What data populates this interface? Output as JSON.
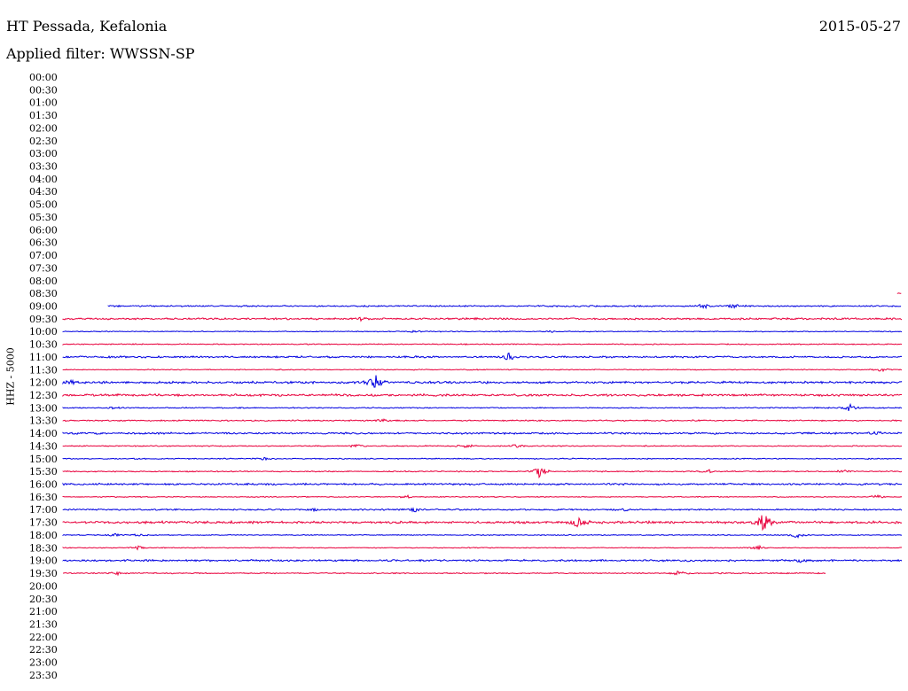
{
  "header": {
    "station": "HT Pessada, Kefalonia",
    "date": "2015-05-27",
    "filter_label": "Applied filter: WWSSN-SP"
  },
  "chart_data": {
    "type": "line",
    "ylabel": "HHZ - 5000",
    "row_labels": [
      "00:00",
      "00:30",
      "01:00",
      "01:30",
      "02:00",
      "02:30",
      "03:00",
      "03:30",
      "04:00",
      "04:30",
      "05:00",
      "05:30",
      "06:00",
      "06:30",
      "07:00",
      "07:30",
      "08:00",
      "08:30",
      "09:00",
      "09:30",
      "10:00",
      "10:30",
      "11:00",
      "11:30",
      "12:00",
      "12:30",
      "13:00",
      "13:30",
      "14:00",
      "14:30",
      "15:00",
      "15:30",
      "16:00",
      "16:30",
      "17:00",
      "17:30",
      "18:00",
      "18:30",
      "19:00",
      "19:30",
      "20:00",
      "20:30",
      "21:00",
      "21:30",
      "22:00",
      "22:30",
      "23:00",
      "23:30"
    ],
    "row_minutes": 30,
    "colors": {
      "blue": "#0000e0",
      "red": "#e8003c"
    },
    "traces": [
      {
        "row": "08:30",
        "color": "red",
        "start": 0.995,
        "end": 1.0,
        "noise": 0.3,
        "events": []
      },
      {
        "row": "09:00",
        "color": "blue",
        "start": 0.054,
        "end": 1.0,
        "noise": 0.8,
        "events": [
          [
            0.765,
            3
          ],
          [
            0.8,
            2
          ]
        ]
      },
      {
        "row": "09:30",
        "color": "red",
        "start": 0,
        "end": 1.0,
        "noise": 1.0,
        "events": [
          [
            0.355,
            1.5
          ]
        ]
      },
      {
        "row": "10:00",
        "color": "blue",
        "start": 0,
        "end": 1.0,
        "noise": 0.5,
        "events": [
          [
            0.42,
            1.5
          ],
          [
            0.58,
            1
          ]
        ]
      },
      {
        "row": "10:30",
        "color": "red",
        "start": 0,
        "end": 1.0,
        "noise": 0.6,
        "events": []
      },
      {
        "row": "11:00",
        "color": "blue",
        "start": 0,
        "end": 1.0,
        "noise": 1.0,
        "events": [
          [
            0.532,
            5
          ]
        ]
      },
      {
        "row": "11:30",
        "color": "red",
        "start": 0,
        "end": 1.0,
        "noise": 0.5,
        "events": [
          [
            0.975,
            2
          ]
        ]
      },
      {
        "row": "12:00",
        "color": "blue",
        "start": 0,
        "end": 1.0,
        "noise": 1.2,
        "events": [
          [
            0.373,
            9
          ],
          [
            0.01,
            2
          ]
        ]
      },
      {
        "row": "12:30",
        "color": "red",
        "start": 0,
        "end": 1.0,
        "noise": 1.2,
        "events": []
      },
      {
        "row": "13:00",
        "color": "blue",
        "start": 0,
        "end": 1.0,
        "noise": 0.6,
        "events": [
          [
            0.938,
            4
          ],
          [
            0.06,
            1.5
          ]
        ]
      },
      {
        "row": "13:30",
        "color": "red",
        "start": 0,
        "end": 1.0,
        "noise": 0.7,
        "events": [
          [
            0.38,
            1.5
          ]
        ]
      },
      {
        "row": "14:00",
        "color": "blue",
        "start": 0,
        "end": 1.0,
        "noise": 1.0,
        "events": [
          [
            0.97,
            2
          ]
        ]
      },
      {
        "row": "14:30",
        "color": "red",
        "start": 0,
        "end": 1.0,
        "noise": 0.6,
        "events": [
          [
            0.35,
            2
          ],
          [
            0.48,
            2.5
          ],
          [
            0.54,
            2
          ]
        ]
      },
      {
        "row": "15:00",
        "color": "blue",
        "start": 0,
        "end": 1.0,
        "noise": 0.6,
        "events": [
          [
            0.24,
            1.5
          ]
        ]
      },
      {
        "row": "15:30",
        "color": "red",
        "start": 0,
        "end": 1.0,
        "noise": 0.6,
        "events": [
          [
            0.567,
            8
          ],
          [
            0.77,
            2
          ],
          [
            0.93,
            2
          ]
        ]
      },
      {
        "row": "16:00",
        "color": "blue",
        "start": 0,
        "end": 1.0,
        "noise": 1.0,
        "events": []
      },
      {
        "row": "16:30",
        "color": "red",
        "start": 0,
        "end": 1.0,
        "noise": 0.5,
        "events": [
          [
            0.97,
            2
          ],
          [
            0.41,
            1.5
          ]
        ]
      },
      {
        "row": "17:00",
        "color": "blue",
        "start": 0,
        "end": 1.0,
        "noise": 0.8,
        "events": [
          [
            0.42,
            2.5
          ],
          [
            0.3,
            1.5
          ],
          [
            0.67,
            1.5
          ]
        ]
      },
      {
        "row": "17:30",
        "color": "red",
        "start": 0,
        "end": 1.0,
        "noise": 1.3,
        "events": [
          [
            0.615,
            7
          ],
          [
            0.835,
            12
          ]
        ]
      },
      {
        "row": "18:00",
        "color": "blue",
        "start": 0,
        "end": 1.0,
        "noise": 0.5,
        "events": [
          [
            0.875,
            3
          ],
          [
            0.06,
            2
          ],
          [
            0.09,
            1.5
          ]
        ]
      },
      {
        "row": "18:30",
        "color": "red",
        "start": 0,
        "end": 1.0,
        "noise": 0.5,
        "events": [
          [
            0.83,
            2.5
          ],
          [
            0.09,
            2
          ]
        ]
      },
      {
        "row": "19:00",
        "color": "blue",
        "start": 0,
        "end": 1.0,
        "noise": 1.0,
        "events": [
          [
            0.88,
            3
          ]
        ]
      },
      {
        "row": "19:30",
        "color": "red",
        "start": 0,
        "end": 0.91,
        "noise": 0.6,
        "events": [
          [
            0.735,
            3
          ],
          [
            0.065,
            1.5
          ]
        ]
      }
    ]
  }
}
